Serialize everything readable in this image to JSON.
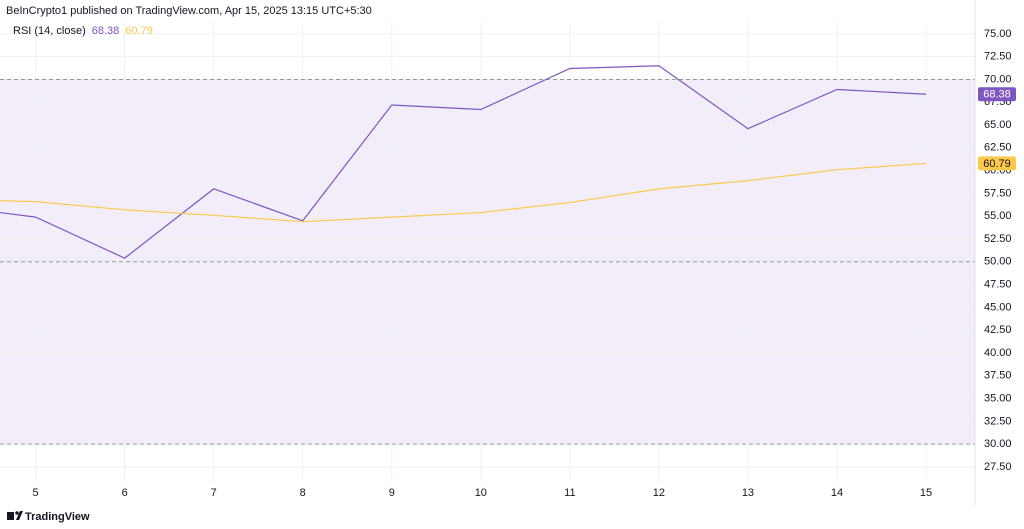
{
  "chart_data": {
    "type": "line",
    "title": "BeInCrypto1 published on TradingView.com, Apr 15, 2025 13:15 UTC+5:30",
    "indicator": "RSI (14, close)",
    "source": "TradingView",
    "x": [
      4.6,
      5,
      6,
      7,
      8,
      9,
      10,
      11,
      12,
      13,
      14,
      15
    ],
    "xlim": [
      4.6,
      15.55
    ],
    "xticks": [
      5,
      6,
      7,
      8,
      9,
      10,
      11,
      12,
      13,
      14,
      15
    ],
    "ylim": [
      25.85,
      76.3
    ],
    "yticks": [
      {
        "value": 27.5,
        "label": "27.50"
      },
      {
        "value": 30,
        "label": "30.00"
      },
      {
        "value": 32.5,
        "label": "32.50"
      },
      {
        "value": 35,
        "label": "35.00"
      },
      {
        "value": 37.5,
        "label": "37.50"
      },
      {
        "value": 40,
        "label": "40.00"
      },
      {
        "value": 42.5,
        "label": "42.50"
      },
      {
        "value": 45,
        "label": "45.00"
      },
      {
        "value": 47.5,
        "label": "47.50"
      },
      {
        "value": 50,
        "label": "50.00"
      },
      {
        "value": 52.5,
        "label": "52.50"
      },
      {
        "value": 55,
        "label": "55.00"
      },
      {
        "value": 57.5,
        "label": "57.50"
      },
      {
        "value": 60,
        "label": "60.00"
      },
      {
        "value": 62.5,
        "label": "62.50"
      },
      {
        "value": 65,
        "label": "65.00"
      },
      {
        "value": 67.5,
        "label": "67.50"
      },
      {
        "value": 70,
        "label": "70.00"
      },
      {
        "value": 72.5,
        "label": "72.50"
      },
      {
        "value": 75,
        "label": "75.00"
      }
    ],
    "bands": {
      "upper": 70,
      "middle": 50,
      "lower": 30,
      "color": "#f2edf9"
    },
    "grid": true,
    "series": [
      {
        "color": "#7e57c2",
        "values": [
          55.4,
          54.9,
          50.4,
          58.0,
          54.5,
          67.2,
          66.7,
          71.2,
          71.5,
          64.6,
          68.9,
          68.38
        ]
      },
      {
        "color": "#fdc94b",
        "values": [
          56.7,
          56.6,
          55.7,
          55.1,
          54.4,
          54.9,
          55.4,
          56.5,
          58.0,
          58.9,
          60.1,
          60.79
        ]
      }
    ]
  }
}
